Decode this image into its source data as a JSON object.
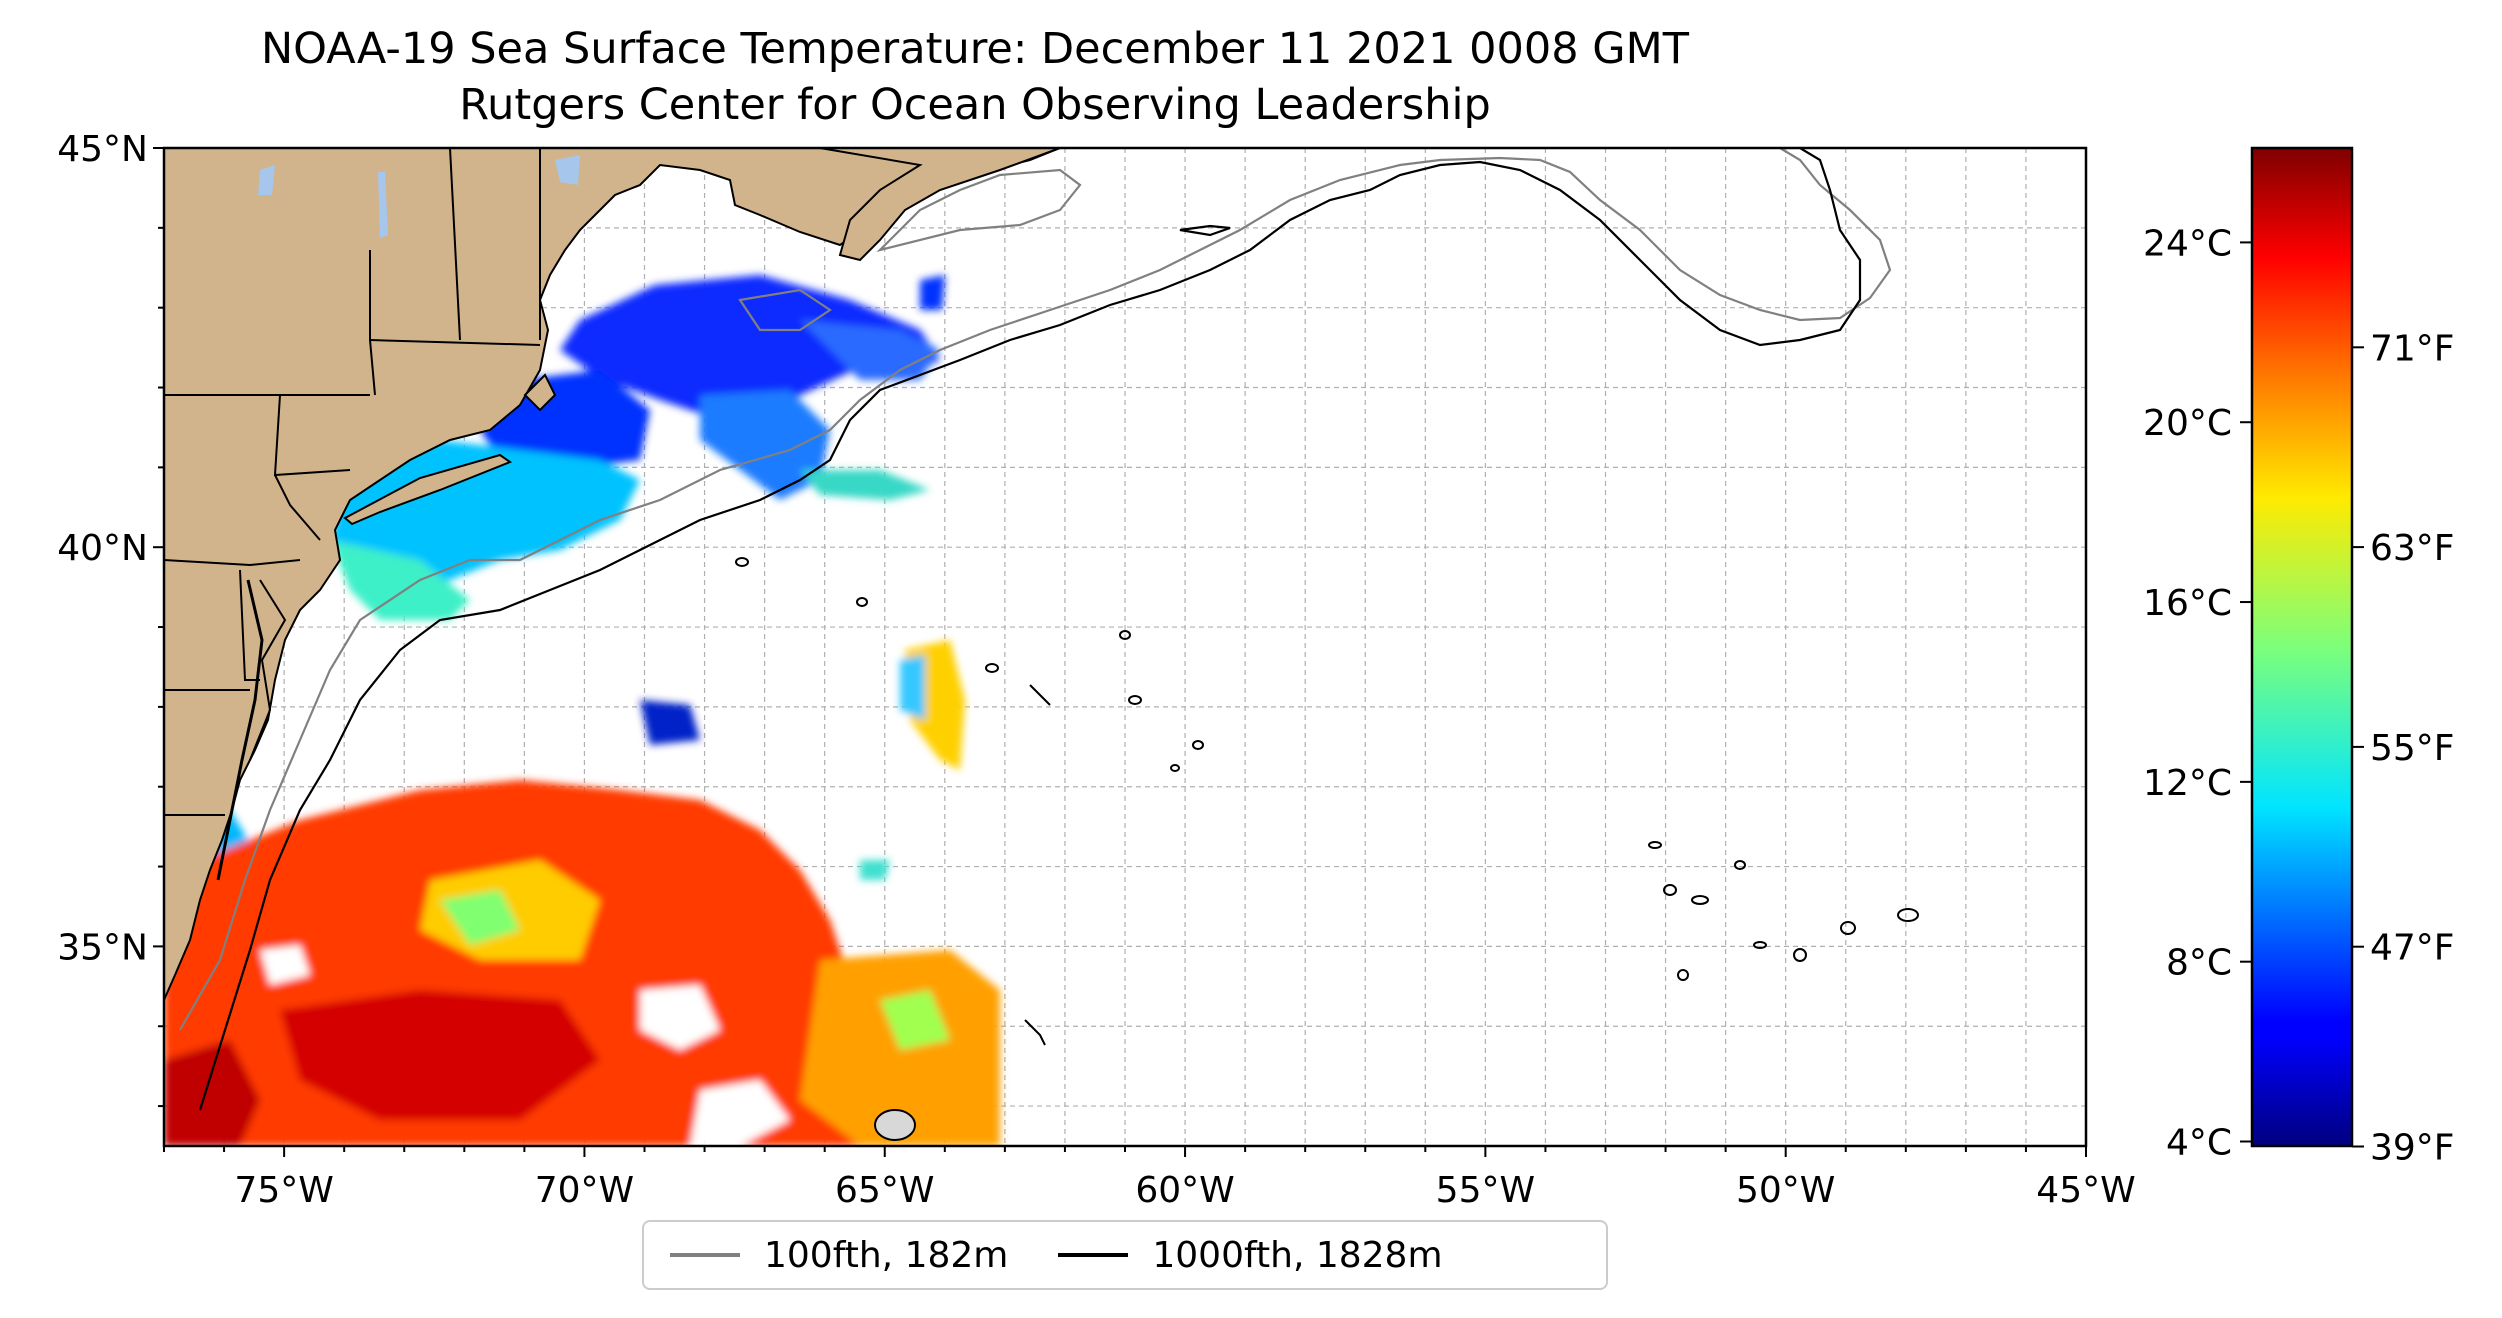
{
  "title": {
    "line1": "NOAA-19 Sea Surface Temperature: December 11 2021 0008 GMT",
    "line2": "Rutgers Center for Ocean Observing Leadership"
  },
  "map": {
    "lon_range": [
      -77,
      -45
    ],
    "lat_range": [
      32.5,
      45
    ],
    "lon_ticks": [
      {
        "value": -75,
        "label": "75°W"
      },
      {
        "value": -70,
        "label": "70°W"
      },
      {
        "value": -65,
        "label": "65°W"
      },
      {
        "value": -60,
        "label": "60°W"
      },
      {
        "value": -55,
        "label": "55°W"
      },
      {
        "value": -50,
        "label": "50°W"
      },
      {
        "value": -45,
        "label": "45°W"
      }
    ],
    "lat_ticks": [
      {
        "value": 45,
        "label": "45°N"
      },
      {
        "value": 40,
        "label": "40°N"
      },
      {
        "value": 35,
        "label": "35°N"
      }
    ],
    "grid": true,
    "land_color": "#d2b48c",
    "lake_color": "#a6c6ec"
  },
  "colorbar": {
    "colormap": "jet",
    "range_c": [
      3.9,
      26.1
    ],
    "celsius_ticks": [
      {
        "value": 24,
        "label": "24°C"
      },
      {
        "value": 20,
        "label": "20°C"
      },
      {
        "value": 16,
        "label": "16°C"
      },
      {
        "value": 12,
        "label": "12°C"
      },
      {
        "value": 8,
        "label": "8°C"
      },
      {
        "value": 4,
        "label": "4°C"
      }
    ],
    "fahrenheit_ticks": [
      {
        "value": 71,
        "label": "71°F"
      },
      {
        "value": 63,
        "label": "63°F"
      },
      {
        "value": 55,
        "label": "55°F"
      },
      {
        "value": 47,
        "label": "47°F"
      },
      {
        "value": 39,
        "label": "39°F"
      }
    ]
  },
  "legend": {
    "placement": "bottom-center",
    "items": [
      {
        "label": "100fth, 182m",
        "color": "#808080"
      },
      {
        "label": "1000fth, 1828m",
        "color": "#000000"
      }
    ]
  }
}
